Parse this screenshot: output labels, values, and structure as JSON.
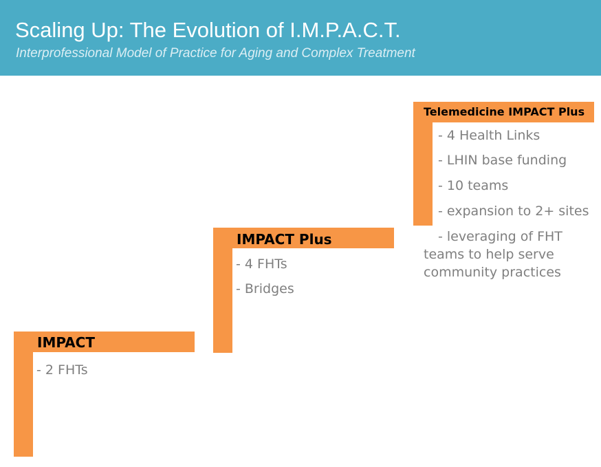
{
  "header": {
    "title": "Scaling Up: The Evolution of I.M.P.A.C.T.",
    "subtitle": "Interprofessional Model of Practice for Aging and Complex Treatment"
  },
  "steps": [
    {
      "title": "IMPACT",
      "bullets": [
        "- 2 FHTs"
      ]
    },
    {
      "title": "IMPACT Plus",
      "bullets": [
        "- 4 FHTs",
        "- Bridges"
      ]
    },
    {
      "title": "Telemedicine IMPACT Plus",
      "bullets": [
        "- 4 Health Links",
        "- LHIN base funding",
        "- 10 teams",
        "- expansion to 2+ sites",
        "- leveraging of FHT teams to help serve community practices"
      ]
    }
  ],
  "colors": {
    "header_bg": "#4bacc6",
    "step_bar": "#f79646",
    "bullet_text": "#7f7f7f"
  }
}
